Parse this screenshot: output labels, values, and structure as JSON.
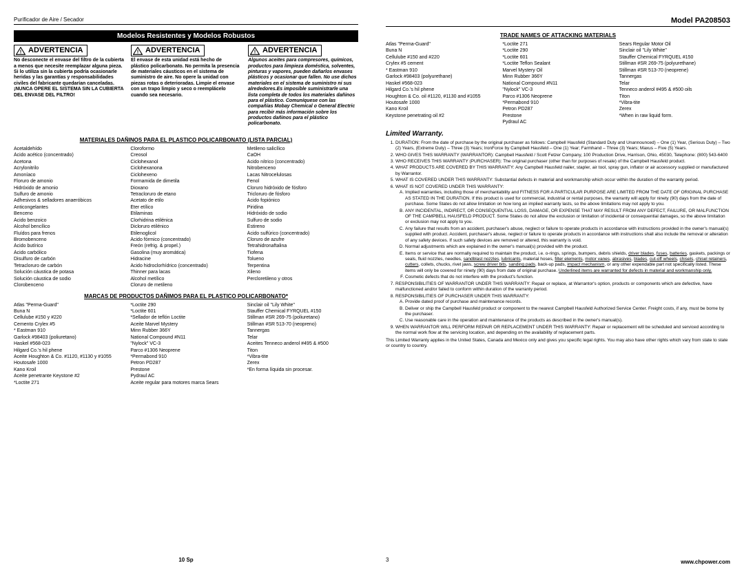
{
  "left": {
    "header_left": "Purificador de Aire / Secador",
    "section_band": "Modelos Resistentes y Modelos Robustos",
    "warn_label": "ADVERTENCIA",
    "warn1": "No desconecte el envase del filtro de la cubierta a menos que necesite reemplazar alguna pieza. Si lo utiliza sin la cubierta podría ocasionarle heridas y las garantías y responsabilidades civiles del fabricante quedarían canceladas. ¡NUNCA OPERE EL SISTEMA SIN LA CUBIERTA DEL ENVASE DEL FILTRO!",
    "warn2": "El envase de esta unidad está hecho de plástico policarbonato. No permita la presencia de materiales cáusticos en el sistema de suministro de aire. No opere la unidad con piezas rotas o deterioradas. Limpie el envase con un trapo limpio y seco o reemplácelo cuando sea necesario.",
    "warn3": "Algunos aceites para compresores, químicos, productos para limpieza doméstica, solventes, pinturas y vapores, pueden dañarlos envases plásticos y ocasionar que fallen. No use dichos materiales en el sistema de suministro ni sus alrededores.Es imposible suministrarle una lista completa de todos los materiales dañinos para el plástico. Comuníquese con las compañías Mobay Chemical o General Electric para recibir más información sobre los productos dañinos para el plástico policarbonato.",
    "materials_title": "MATERIALES DAÑINOS PARA EL PLASTICO POLICARBONATO (LISTA PARCIAL)",
    "materials_col1": [
      "Acetaldehído",
      "Ácido acético (concentrado)",
      "Acetona",
      "Acrylonitrilo",
      "Amoníaco",
      "Floruro de amonio",
      "Hidróxido de amonio",
      "Sulfuro de amonio",
      "Adhesivos & selladores anaeróbicos",
      "Anticongelantes",
      "Benceno",
      "Ácido benzoico",
      "Alcohol bencílico",
      "Fluídos para frenos",
      "Bromobenceno",
      "Ácido butírico",
      "Ácido carbólico",
      "Disulfuro de carbón",
      "Tetracloruro de carbón",
      "Solución cáustica de potasa",
      "Solución cáustica de sodio",
      "Clorobenceno"
    ],
    "materials_col2": [
      "Cloroformo",
      "Creosol",
      "Ciclohexanol",
      "Ciclohexanona",
      "Ciclohexeno",
      "Formamida de dimetila",
      "Dioxano",
      "Tetracloruro de etano",
      "Acetato de etilo",
      "Éter etílico",
      "Etilaminas",
      "Clorhidrina etilénica",
      "Dicloruro etilénico",
      "Etilenoglicol",
      "Ácido fórmico (concentrado)",
      "Freón (refrig. & propel.)",
      "Gasolina (muy aromática)",
      "Hidracine",
      "Ácido hidroclorhídrico (concentrado)",
      "Thinner para lacas",
      "Alcohol metílico",
      "Cloruro de metileno"
    ],
    "materials_col3": [
      "Metileno salicílico",
      "CaOH",
      "Ácido nítrico (concentrado)",
      "Nitrobenceno",
      "Lacas Nitrocelulosas",
      "Fenol",
      "Cloruro hidróxido de fósforo",
      "Tricloruro de fósforo",
      "Ácido fopiónico",
      "Piridina",
      "Hidróxido de sodio",
      "Sulfuro de sodio",
      "Estireno",
      "Ácido sulfúrico (concentrado)",
      "Cloruro de azufre",
      "Tetrahidronaftalina",
      "Tiofena",
      "Tolueno",
      "Terpentina",
      "Xileno",
      "Percloretileno y otros"
    ],
    "brands_title": "MARCAS DE PRODUCTOS DAÑIMOS PARA EL PLASTICO POLICARBONATO*",
    "brands_col1": [
      "Atlas \"Perma-Guard\"",
      "Buna N",
      "Cellulube #150 y #220",
      "Cemento Crylex #5",
      "* Eastman 910",
      "Garlock #98403 (poliuretano)",
      "Haskel #568-023",
      "Hilgard Co.'s hil phene",
      "Aceite Houghton & Co. #1120, #1130 y #1055",
      "Houtosafe 1000",
      "Kano Kroil",
      "Aceite penetrante Keystone #2",
      "*Loctite 271"
    ],
    "brands_col2": [
      "*Loctite 290",
      "*Loctite 601",
      "*Sellador de teflón Loctite",
      "Aceite Marvel Mystery",
      "Minn Rubber 366Y",
      "National Compound #N11",
      "\"Nylock\" VC-3",
      "Parco #1306 Neoprene",
      "*Permabond 910",
      "Petron PD287",
      "Prestone",
      "Pydraul AC",
      "Aceite regular para motores marca Sears"
    ],
    "brands_col3": [
      "Sinclair oil \"Lily White\"",
      "Stauffer Chemical FYRQUEL #150",
      "Stillman #SR 269-75 (poliuretano)",
      "Stillman #SR 513-70 (neopreno)",
      "Tannergas",
      "Telar",
      "Aceites Tenneco anderol #495 & #500",
      "Titon",
      "*Vibra-tite",
      "Zerex",
      "*En forma líquida sin procesar."
    ],
    "footer": "10 Sp"
  },
  "right": {
    "header_right": "Model PA208503",
    "attack_title": "TRADE NAMES OF ATTACKING MATERIALS",
    "attack_col1": [
      "Atlas \"Perma-Guard\"",
      "Buna N",
      "Cellulube #150 and #220",
      "Crylex #5 cement",
      "* Eastman 910",
      "Garlock #98403 (polyurethane)",
      "Haskel #568-023",
      "Hilgard Co.'s hil phene",
      "Houghton & Co. oil #1120, #1130 and #1055",
      "Houtosafe 1000",
      "Kano Kroil",
      "Keystone penetrating oil #2"
    ],
    "attack_col2": [
      "*Loctite 271",
      "*Loctite 290",
      "*Loctite 601",
      "*Loctite Teflon Sealant",
      "Marvel Mystery Oil",
      "Minn Rubber 366Y",
      "National Compound #N11",
      "\"Nylock\" VC-3",
      "Parco #1306 Neoprene",
      "*Permabond 910",
      "Petron PD287",
      "Prestone",
      "Pydraul AC"
    ],
    "attack_col3": [
      "Sears Regular Motor Oil",
      "Sinclair oil \"Lily White\"",
      "Stauffer Chemical FYRQUEL #150",
      "Stillman #SR 269-75 (polyurethane)",
      "Stillman #SR 513-70 (neoprene)",
      "Tannergas",
      "Telar",
      "Tenneco anderol #495 & #500 oils",
      "Titon",
      "*Vibra-tite",
      "Zerex",
      "*When in raw liquid form."
    ],
    "warranty_title": "Limited Warranty.",
    "footer_url": "www.chpower.com",
    "footer_page": "3"
  }
}
